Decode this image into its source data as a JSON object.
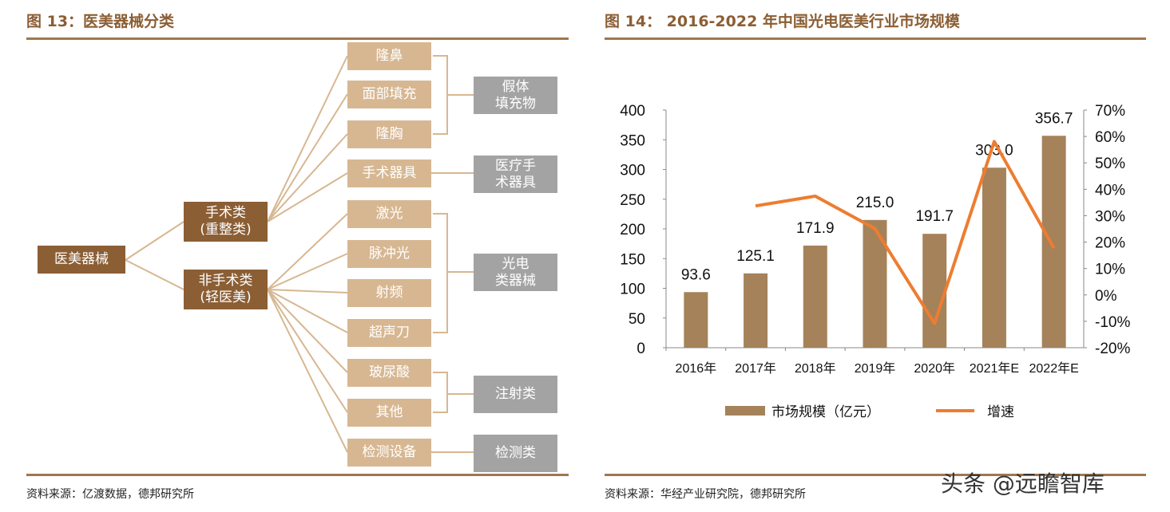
{
  "left": {
    "title": "图 13：医美器械分类",
    "source": "资料来源：亿渡数据，德邦研究所",
    "root": "医美器械",
    "level2": [
      "手术类\n(重整类)",
      "非手术类\n(轻医美)"
    ],
    "items": [
      "隆鼻",
      "面部填充",
      "隆胸",
      "手术器具",
      "激光",
      "脉冲光",
      "射频",
      "超声刀",
      "玻尿酸",
      "其他",
      "检测设备"
    ],
    "groups": [
      "假体\n填充物",
      "医疗手\n术器具",
      "光电\n类器械",
      "注射类",
      "检测类"
    ]
  },
  "right": {
    "title": "图 14： 2016-2022 年中国光电医美行业市场规模",
    "source": "资料来源：华经产业研究院，德邦研究所"
  },
  "watermark": "头条 @远瞻智库",
  "chart_data": {
    "type": "bar+line",
    "categories": [
      "2016年",
      "2017年",
      "2018年",
      "2019年",
      "2020年",
      "2021年E",
      "2022年E"
    ],
    "series": [
      {
        "name": "市场规模（亿元）",
        "type": "bar",
        "axis": "left",
        "color": "#a5825a",
        "values": [
          93.6,
          125.1,
          171.9,
          215.0,
          191.7,
          303.0,
          356.7
        ],
        "labels": [
          "93.6",
          "125.1",
          "171.9",
          "215.0",
          "191.7",
          "303.0",
          "356.7"
        ]
      },
      {
        "name": "增速",
        "type": "line",
        "axis": "right",
        "color": "#ed7d31",
        "values": [
          null,
          33.7,
          37.4,
          25.1,
          -10.8,
          58.1,
          17.7
        ]
      }
    ],
    "y_left": {
      "min": 0,
      "max": 400,
      "ticks": [
        "0",
        "50",
        "100",
        "150",
        "200",
        "250",
        "300",
        "350",
        "400"
      ]
    },
    "y_right": {
      "min": -20,
      "max": 70,
      "unit": "%",
      "ticks": [
        "-20%",
        "-10%",
        "0%",
        "10%",
        "20%",
        "30%",
        "40%",
        "50%",
        "60%",
        "70%"
      ]
    },
    "grid": false,
    "legend": "bottom"
  }
}
